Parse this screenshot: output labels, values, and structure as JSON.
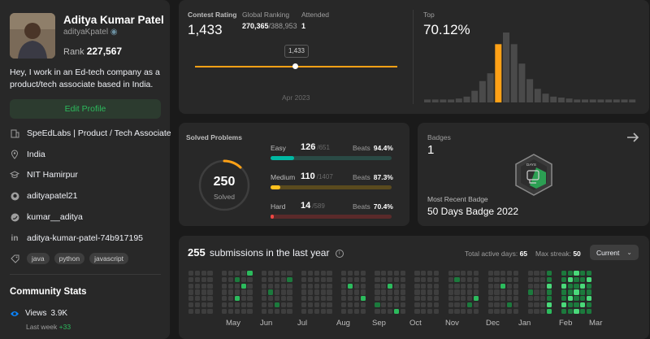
{
  "profile": {
    "name": "Aditya Kumar Patel",
    "username": "adityaKpatel",
    "rank_label": "Rank",
    "rank": "227,567",
    "bio": "Hey, I work in an Ed-tech company as a product/tech associate based in India.",
    "edit_label": "Edit Profile",
    "company": "SpeEdLabs | Product / Tech Associate",
    "location": "India",
    "school": "NIT Hamirpur",
    "github": "adityapatel21",
    "twitter": "kumar__aditya",
    "linkedin": "aditya-kumar-patel-74b917195",
    "skills": [
      "java",
      "python",
      "javascript"
    ],
    "community_title": "Community Stats",
    "views_label": "Views",
    "views_value": "3.9K",
    "last_week_label": "Last week",
    "last_week_value": "+33"
  },
  "contest": {
    "rating_label": "Contest Rating",
    "rating": "1,433",
    "global_label": "Global Ranking",
    "global_rank": "270,365",
    "global_total": "/388,953",
    "attended_label": "Attended",
    "attended": "1",
    "tooltip": "1,433",
    "date": "Apr 2023",
    "top_label": "Top",
    "top_value": "70.12%",
    "histogram": [
      3,
      3,
      3,
      3,
      4,
      6,
      12,
      22,
      30,
      60,
      72,
      60,
      40,
      24,
      14,
      9,
      6,
      5,
      4,
      3,
      3,
      3,
      3,
      3,
      3,
      3,
      3
    ],
    "highlight_index": 9
  },
  "solved": {
    "title": "Solved Problems",
    "total": "250",
    "total_label": "Solved",
    "difficulties": [
      {
        "name": "Easy",
        "count": "126",
        "total": "/651",
        "beats_label": "Beats",
        "beats": "94.4%",
        "fraction": 0.194,
        "color": "#00b8a3",
        "track": "#2a4a45"
      },
      {
        "name": "Medium",
        "count": "110",
        "total": "/1407",
        "beats_label": "Beats",
        "beats": "87.3%",
        "fraction": 0.078,
        "color": "#ffc01e",
        "track": "#5a4a1e"
      },
      {
        "name": "Hard",
        "count": "14",
        "total": "/589",
        "beats_label": "Beats",
        "beats": "70.4%",
        "fraction": 0.024,
        "color": "#ef4743",
        "track": "#5a2a2a"
      }
    ]
  },
  "badges": {
    "title": "Badges",
    "count": "1",
    "recent_label": "Most Recent Badge",
    "recent_name": "50 Days Badge 2022",
    "badge_text": "DAYS"
  },
  "submissions": {
    "count": "255",
    "title": "submissions in the last year",
    "active_label": "Total active days:",
    "active_value": "65",
    "streak_label": "Max streak:",
    "streak_value": "50",
    "select_value": "Current",
    "months": [
      "May",
      "Jun",
      "Jul",
      "Aug",
      "Sep",
      "Oct",
      "Nov",
      "Dec",
      "Jan",
      "Feb",
      "Mar"
    ]
  },
  "colors": {
    "accent": "#ffa116",
    "green": "#2cbb5d",
    "cell_empty": "#3e3e3e"
  }
}
